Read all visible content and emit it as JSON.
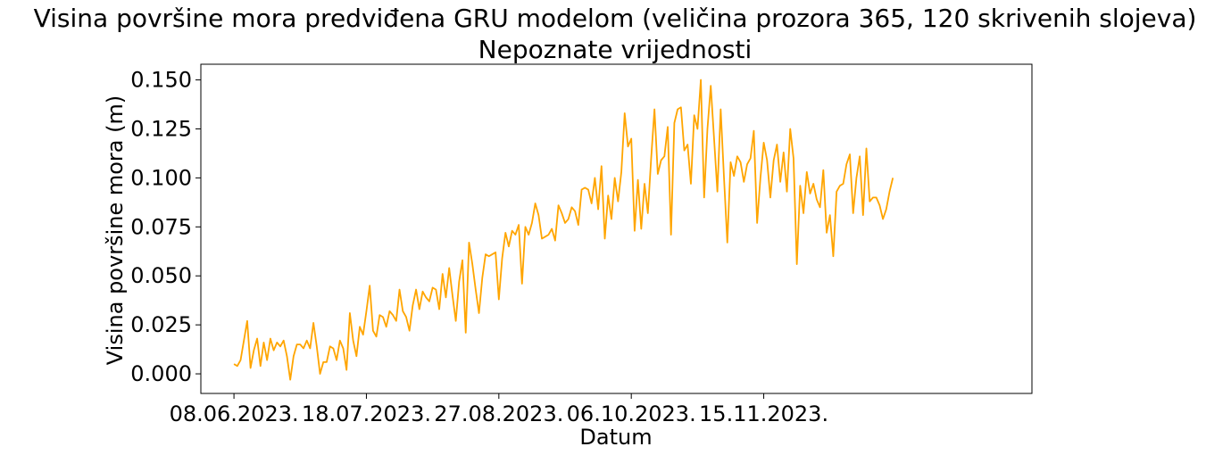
{
  "figure": {
    "title_line1": "Visina površine mora predviđena GRU modelom (veličina prozora 365, 120 skrivenih slojeva)",
    "title_line2": "Nepoznate vrijednosti"
  },
  "chart_data": {
    "type": "line",
    "title": "Visina površine mora predviđena GRU modelom (veličina prozora 365, 120 skrivenih slojeva)",
    "subtitle": "Nepoznate vrijednosti",
    "xlabel": "Datum",
    "ylabel": "Visina površine mora (m)",
    "x_start": "08.06.2023.",
    "x_step_days": 1,
    "xlim": [
      "29.05.2023.",
      "04.02.2024."
    ],
    "ylim": [
      -0.01,
      0.158
    ],
    "xticks": [
      "08.06.2023.",
      "18.07.2023.",
      "27.08.2023.",
      "06.10.2023.",
      "15.11.2023."
    ],
    "yticks": [
      0.0,
      0.025,
      0.05,
      0.075,
      0.1,
      0.125,
      0.15
    ],
    "ytick_labels": [
      "0.000",
      "0.025",
      "0.050",
      "0.075",
      "0.100",
      "0.125",
      "0.150"
    ],
    "grid": false,
    "legend": "none",
    "colors": {
      "line": "#FFA500",
      "axes": "#000000",
      "background": "#FFFFFF"
    },
    "series": [
      {
        "values": [
          0.005,
          0.004,
          0.007,
          0.017,
          0.027,
          0.003,
          0.012,
          0.018,
          0.004,
          0.016,
          0.007,
          0.018,
          0.012,
          0.016,
          0.014,
          0.017,
          0.009,
          -0.003,
          0.009,
          0.015,
          0.015,
          0.013,
          0.017,
          0.013,
          0.026,
          0.014,
          0.0,
          0.006,
          0.006,
          0.014,
          0.013,
          0.007,
          0.017,
          0.013,
          0.002,
          0.031,
          0.017,
          0.009,
          0.024,
          0.02,
          0.032,
          0.045,
          0.022,
          0.019,
          0.03,
          0.029,
          0.024,
          0.032,
          0.03,
          0.027,
          0.043,
          0.032,
          0.029,
          0.022,
          0.035,
          0.043,
          0.033,
          0.042,
          0.039,
          0.037,
          0.044,
          0.043,
          0.033,
          0.051,
          0.039,
          0.054,
          0.04,
          0.027,
          0.047,
          0.058,
          0.021,
          0.067,
          0.056,
          0.043,
          0.031,
          0.049,
          0.061,
          0.06,
          0.061,
          0.062,
          0.038,
          0.059,
          0.072,
          0.065,
          0.073,
          0.071,
          0.076,
          0.046,
          0.075,
          0.071,
          0.077,
          0.087,
          0.081,
          0.069,
          0.07,
          0.071,
          0.074,
          0.068,
          0.086,
          0.082,
          0.077,
          0.079,
          0.085,
          0.083,
          0.076,
          0.094,
          0.095,
          0.094,
          0.087,
          0.1,
          0.084,
          0.106,
          0.069,
          0.091,
          0.079,
          0.1,
          0.088,
          0.103,
          0.133,
          0.116,
          0.12,
          0.073,
          0.099,
          0.074,
          0.097,
          0.082,
          0.11,
          0.135,
          0.102,
          0.109,
          0.111,
          0.126,
          0.071,
          0.128,
          0.135,
          0.136,
          0.114,
          0.117,
          0.097,
          0.132,
          0.125,
          0.15,
          0.09,
          0.125,
          0.147,
          0.12,
          0.093,
          0.135,
          0.1,
          0.067,
          0.108,
          0.101,
          0.111,
          0.108,
          0.098,
          0.107,
          0.11,
          0.124,
          0.077,
          0.1,
          0.118,
          0.109,
          0.09,
          0.109,
          0.117,
          0.098,
          0.113,
          0.093,
          0.125,
          0.11,
          0.056,
          0.096,
          0.082,
          0.103,
          0.092,
          0.097,
          0.089,
          0.085,
          0.104,
          0.072,
          0.081,
          0.06,
          0.093,
          0.096,
          0.097,
          0.107,
          0.112,
          0.082,
          0.1,
          0.111,
          0.081,
          0.115,
          0.088,
          0.09,
          0.09,
          0.086,
          0.079,
          0.084,
          0.093,
          0.1
        ]
      }
    ]
  }
}
